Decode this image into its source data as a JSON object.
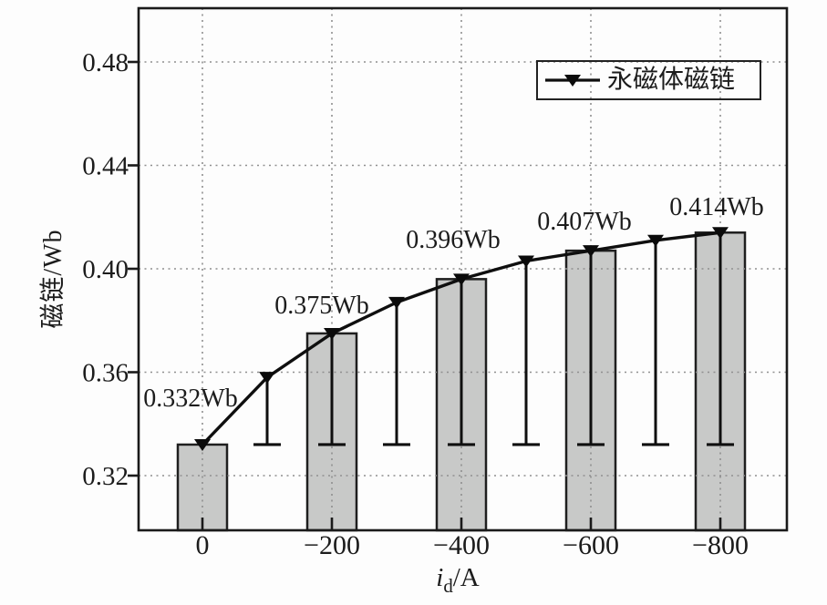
{
  "chart_data": {
    "type": "bar+line",
    "title": "",
    "ylabel": "磁链/Wb",
    "xlabel": "i_d/A",
    "xlabel_parts": {
      "var": "i",
      "sub": "d",
      "rest": "/A"
    },
    "x_tick_labels": [
      "0",
      "−200",
      "−400",
      "−600",
      "−800"
    ],
    "x_tick_values": [
      0,
      -200,
      -400,
      -600,
      -800
    ],
    "y_tick_labels": [
      "0.48",
      "0.44",
      "0.40",
      "0.36",
      "0.32"
    ],
    "y_tick_values": [
      0.48,
      0.44,
      0.4,
      0.36,
      0.32
    ],
    "xlim": [
      100,
      -900
    ],
    "ylim": [
      0.3,
      0.5
    ],
    "grid": "dotted-both",
    "bars": {
      "categories": [
        0,
        -200,
        -400,
        -600,
        -800
      ],
      "values": [
        0.332,
        0.375,
        0.396,
        0.407,
        0.414
      ],
      "labels": [
        "0.332Wb",
        "0.375Wb",
        "0.396Wb",
        "0.407Wb",
        "0.414Wb"
      ]
    },
    "series": [
      {
        "name": "永磁体磁链",
        "marker": "triangle-down",
        "x": [
          0,
          -100,
          -200,
          -300,
          -400,
          -500,
          -600,
          -700,
          -800
        ],
        "values": [
          0.332,
          0.358,
          0.375,
          0.387,
          0.396,
          0.403,
          0.407,
          0.411,
          0.414
        ]
      }
    ],
    "stem_baseline": 0.332,
    "legend": {
      "label": "永磁体磁链",
      "position": "upper-right"
    },
    "colors": {
      "bar_fill": "#c8c9c8",
      "bar_edge": "#1f1f1f",
      "line": "#0f0f0f",
      "marker": "#0b0b0b",
      "grid": "#8f8f8f",
      "frame": "#1a1a1a",
      "text": "#1c1c1c",
      "background": "#fdfdfd"
    }
  }
}
